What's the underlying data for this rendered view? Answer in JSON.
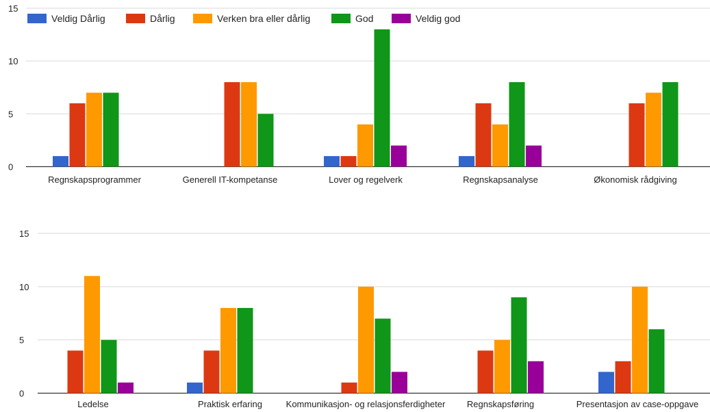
{
  "colors": {
    "Veldig Dårlig": "#3366cc",
    "Dårlig": "#dc3912",
    "Verken bra eller dårlig": "#ff9900",
    "God": "#109618",
    "Veldig god": "#990099"
  },
  "legend": {
    "placement": "top-left",
    "items": [
      "Veldig Dårlig",
      "Dårlig",
      "Verken bra eller dårlig",
      "God",
      "Veldig god"
    ]
  },
  "chart_data": [
    {
      "type": "bar",
      "title": "",
      "xlabel": "",
      "ylabel": "",
      "ylim": [
        0,
        15
      ],
      "yticks": [
        0,
        5,
        10,
        15
      ],
      "grid": true,
      "categories": [
        "Regnskapsprogrammer",
        "Generell IT-kompetanse",
        "Lover og regelverk",
        "Regnskapsanalyse",
        "Økonomisk rådgiving"
      ],
      "series": [
        {
          "name": "Veldig Dårlig",
          "values": [
            1,
            0,
            1,
            1,
            0
          ]
        },
        {
          "name": "Dårlig",
          "values": [
            6,
            8,
            1,
            6,
            6
          ]
        },
        {
          "name": "Verken bra eller dårlig",
          "values": [
            7,
            8,
            4,
            4,
            7
          ]
        },
        {
          "name": "God",
          "values": [
            7,
            5,
            13,
            8,
            8
          ]
        },
        {
          "name": "Veldig god",
          "values": [
            0,
            0,
            2,
            2,
            0
          ]
        }
      ]
    },
    {
      "type": "bar",
      "title": "",
      "xlabel": "",
      "ylabel": "",
      "ylim": [
        0,
        15
      ],
      "yticks": [
        0,
        5,
        10,
        15
      ],
      "grid": true,
      "categories": [
        "Ledelse",
        "Praktisk erfaring",
        "Kommunikasjon- og relasjonsferdigheter",
        "Regnskapsføring",
        "Presentasjon av case-oppgave"
      ],
      "series": [
        {
          "name": "Veldig Dårlig",
          "values": [
            0,
            1,
            0,
            0,
            2
          ]
        },
        {
          "name": "Dårlig",
          "values": [
            4,
            4,
            1,
            4,
            3
          ]
        },
        {
          "name": "Verken bra eller dårlig",
          "values": [
            11,
            8,
            10,
            5,
            10
          ]
        },
        {
          "name": "God",
          "values": [
            5,
            8,
            7,
            9,
            6
          ]
        },
        {
          "name": "Veldig god",
          "values": [
            1,
            0,
            2,
            3,
            0
          ]
        }
      ]
    }
  ]
}
